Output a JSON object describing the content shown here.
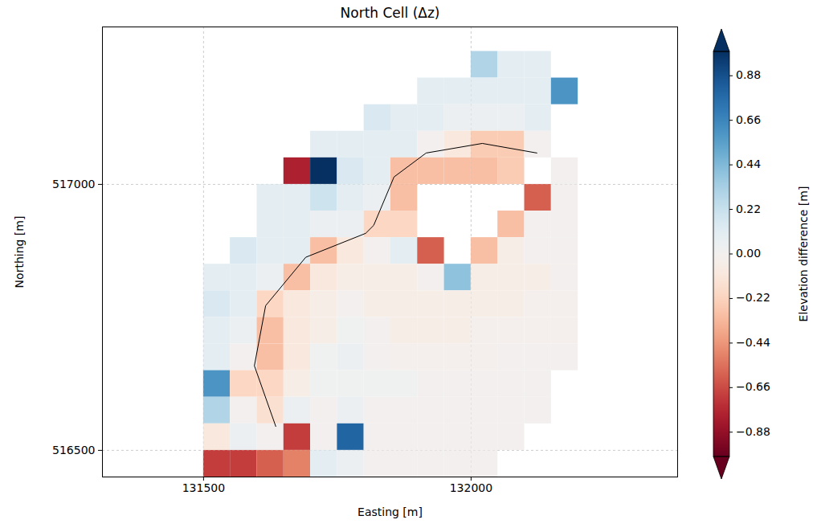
{
  "chart_data": {
    "type": "heatmap",
    "title": "North Cell (Δz)",
    "x_label": "Easting [m]",
    "y_label": "Northing [m]",
    "xlim": [
      131311,
      132386
    ],
    "ylim": [
      516450,
      517296
    ],
    "xticks": [
      131500,
      132000
    ],
    "yticks": [
      516500,
      517000
    ],
    "grid": true,
    "cells": {
      "x_edges": [
        131500,
        131550,
        131600,
        131650,
        131700,
        131750,
        131800,
        131850,
        131900,
        131950,
        132000,
        132050,
        132100,
        132150,
        132200
      ],
      "y_edges": [
        517250,
        517200,
        517150,
        517100,
        517050,
        517000,
        516950,
        516900,
        516850,
        516800,
        516750,
        516700,
        516650,
        516600,
        516550,
        516500,
        516450
      ],
      "z": [
        [
          null,
          null,
          null,
          null,
          null,
          null,
          null,
          null,
          null,
          null,
          0.3,
          0.1,
          0.1,
          null
        ],
        [
          null,
          null,
          null,
          null,
          null,
          null,
          null,
          null,
          0.1,
          0.1,
          0.1,
          0.1,
          0.1,
          0.6
        ],
        [
          null,
          null,
          null,
          null,
          null,
          null,
          0.15,
          0.1,
          0.1,
          0.05,
          0.05,
          0.05,
          0.1,
          null
        ],
        [
          null,
          null,
          null,
          null,
          0.1,
          0.1,
          0.1,
          0.1,
          0.0,
          -0.1,
          -0.25,
          -0.25,
          0.0,
          null
        ],
        [
          null,
          null,
          null,
          -0.8,
          1.0,
          0.15,
          0.1,
          -0.3,
          -0.3,
          -0.3,
          -0.3,
          -0.25,
          null,
          0.0
        ],
        [
          null,
          null,
          0.1,
          0.1,
          0.2,
          0.1,
          0.05,
          -0.3,
          null,
          null,
          null,
          null,
          -0.6,
          0.0
        ],
        [
          null,
          null,
          0.1,
          0.1,
          0.05,
          0.05,
          -0.2,
          -0.2,
          null,
          null,
          null,
          -0.3,
          0.0,
          0.0
        ],
        [
          null,
          0.15,
          0.1,
          0.1,
          -0.3,
          -0.1,
          0.0,
          0.1,
          -0.6,
          null,
          -0.3,
          -0.05,
          0.0,
          0.0
        ],
        [
          0.1,
          0.1,
          0.05,
          -0.3,
          -0.1,
          -0.05,
          -0.05,
          -0.05,
          0.0,
          0.4,
          -0.05,
          -0.05,
          -0.05,
          0.0
        ],
        [
          0.15,
          0.1,
          -0.2,
          -0.1,
          -0.05,
          0.0,
          -0.05,
          -0.05,
          -0.05,
          -0.05,
          -0.05,
          -0.05,
          -0.02,
          -0.02
        ],
        [
          0.1,
          0.05,
          -0.3,
          -0.1,
          -0.05,
          0.02,
          0.0,
          -0.05,
          -0.05,
          -0.05,
          -0.02,
          -0.02,
          -0.02,
          -0.02
        ],
        [
          0.1,
          0.0,
          -0.3,
          -0.1,
          0.02,
          0.05,
          0.0,
          -0.02,
          -0.02,
          -0.02,
          -0.02,
          0.0,
          0.0,
          0.0
        ],
        [
          0.6,
          -0.2,
          -0.2,
          -0.05,
          0.02,
          0.02,
          0.02,
          0.02,
          0.0,
          0.0,
          0.0,
          0.0,
          0.0,
          null
        ],
        [
          0.3,
          0.0,
          -0.15,
          0.05,
          0.0,
          0.05,
          0.0,
          0.0,
          0.0,
          0.0,
          0.0,
          0.0,
          0.0,
          null
        ],
        [
          -0.1,
          0.05,
          0.0,
          -0.7,
          0.0,
          0.8,
          0.0,
          0.0,
          0.0,
          0.0,
          0.0,
          0.0,
          null,
          null
        ],
        [
          -0.7,
          -0.7,
          -0.6,
          -0.5,
          0.1,
          0.05,
          0.0,
          0.0,
          0.0,
          0.0,
          0.0,
          null,
          null,
          null
        ]
      ]
    },
    "line": {
      "color": "#000000",
      "x": [
        131635,
        131595,
        131616,
        131691,
        131803,
        131818,
        131856,
        131916,
        132021,
        132123
      ],
      "y": [
        516545,
        516659,
        516772,
        516863,
        516908,
        516923,
        517014,
        517059,
        517077,
        517059
      ]
    },
    "colorbar": {
      "label": "Elevation difference [m]",
      "range": [
        -1,
        1
      ],
      "ticks": [
        {
          "value": -0.88,
          "label": "−0.88"
        },
        {
          "value": -0.66,
          "label": "−0.66"
        },
        {
          "value": -0.44,
          "label": "−0.44"
        },
        {
          "value": -0.22,
          "label": "−0.22"
        },
        {
          "value": 0,
          "label": "0.00"
        },
        0.22,
        0.44,
        0.66,
        0.88
      ]
    }
  }
}
